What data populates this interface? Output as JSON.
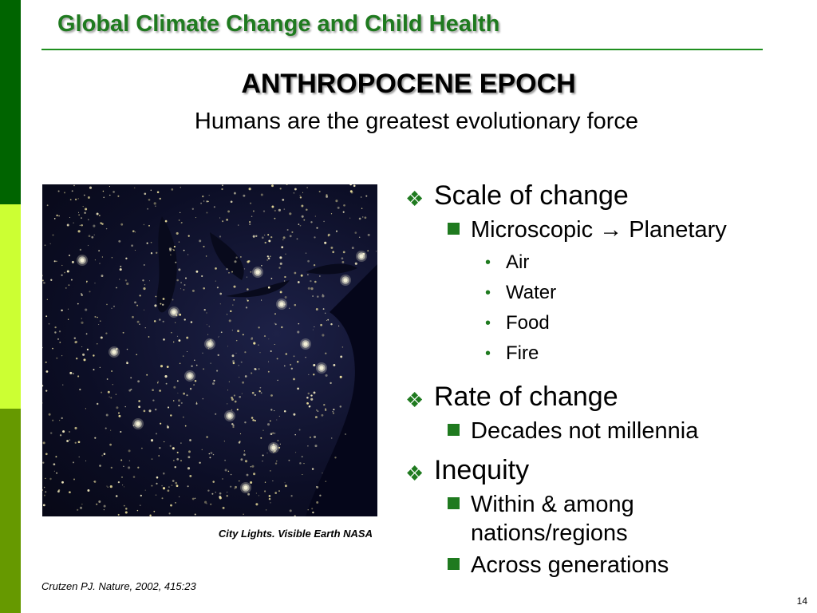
{
  "header": {
    "title": "Global Climate Change and Child Health"
  },
  "slide": {
    "title": "ANTHROPOCENE EPOCH",
    "subtitle": "Humans are the greatest evolutionary force"
  },
  "image": {
    "caption": "City Lights. Visible Earth NASA"
  },
  "citation": "Crutzen PJ. Nature, 2002, 415:23",
  "page_number": "14",
  "colors": {
    "dark_green": "#006400",
    "lime": "#ccff33",
    "olive_green": "#669900",
    "title_green": "#1f7a1f"
  },
  "bullets": {
    "scale": {
      "label": "Scale of change",
      "sub": {
        "from": "Microscopic",
        "arrow": "→",
        "to": "Planetary",
        "items": [
          "Air",
          "Water",
          "Food",
          "Fire"
        ]
      }
    },
    "rate": {
      "label": "Rate of change",
      "sub": "Decades not millennia"
    },
    "inequity": {
      "label": "Inequity",
      "sub1_line1": "Within & among",
      "sub1_line2": "nations/regions",
      "sub2": "Across generations"
    }
  }
}
